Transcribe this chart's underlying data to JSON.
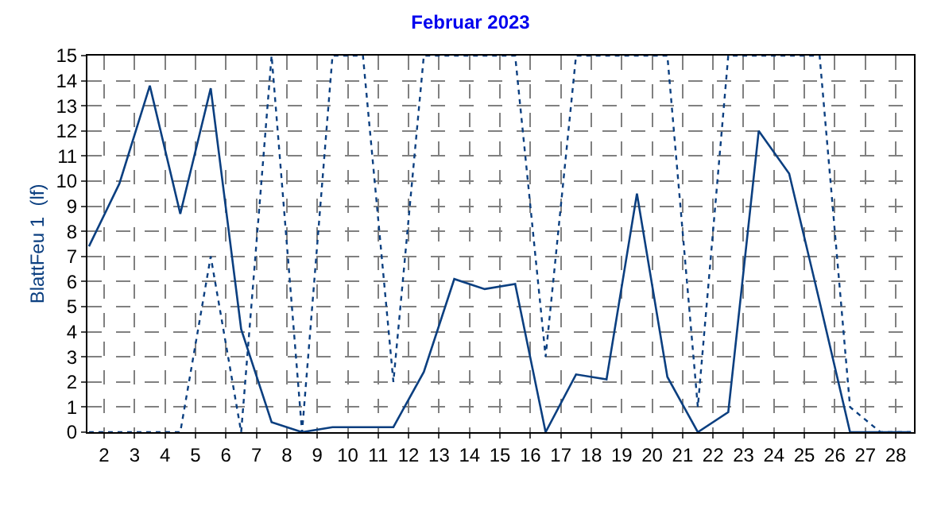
{
  "chart_data": {
    "type": "line",
    "title": "Februar 2023",
    "ylabel": "BlattFeu 1  (lf)",
    "x": [
      1.5,
      2.5,
      3.5,
      4.5,
      5.5,
      6.5,
      7.5,
      8.5,
      9.5,
      10.5,
      11.5,
      12.5,
      13.5,
      14.5,
      15.5,
      16.5,
      17.5,
      18.5,
      19.5,
      20.5,
      21.5,
      22.5,
      23.5,
      24.5,
      25.5,
      26.5,
      27.5,
      28.5
    ],
    "series": [
      {
        "color": "#0b3f80",
        "line_style": "solid",
        "values": [
          7.4,
          9.9,
          13.8,
          8.7,
          13.7,
          4.1,
          0.4,
          0,
          0.2,
          0.2,
          0.2,
          2.4,
          6.1,
          5.7,
          5.9,
          0,
          2.3,
          2.1,
          9.5,
          2.2,
          0,
          0.8,
          12.0,
          10.3,
          5.2,
          0,
          0,
          0
        ]
      },
      {
        "color": "#0b3f80",
        "line_style": "dotted",
        "values": [
          0,
          0,
          0,
          0,
          7,
          0,
          15,
          0,
          15,
          15,
          2,
          15,
          15,
          15,
          15,
          3,
          15,
          15,
          15,
          15,
          1,
          15,
          15,
          15,
          15,
          1,
          0,
          0
        ]
      }
    ],
    "xlim": [
      1.45,
      28.6
    ],
    "xticks": [
      2,
      3,
      4,
      5,
      6,
      7,
      8,
      9,
      10,
      11,
      12,
      13,
      14,
      15,
      16,
      17,
      18,
      19,
      20,
      21,
      22,
      23,
      24,
      25,
      26,
      27,
      28
    ],
    "ylim": [
      0,
      15
    ],
    "yticks": [
      0,
      1,
      2,
      3,
      4,
      5,
      6,
      7,
      8,
      9,
      10,
      11,
      12,
      13,
      14,
      15
    ],
    "grid": true,
    "marker": "none"
  }
}
